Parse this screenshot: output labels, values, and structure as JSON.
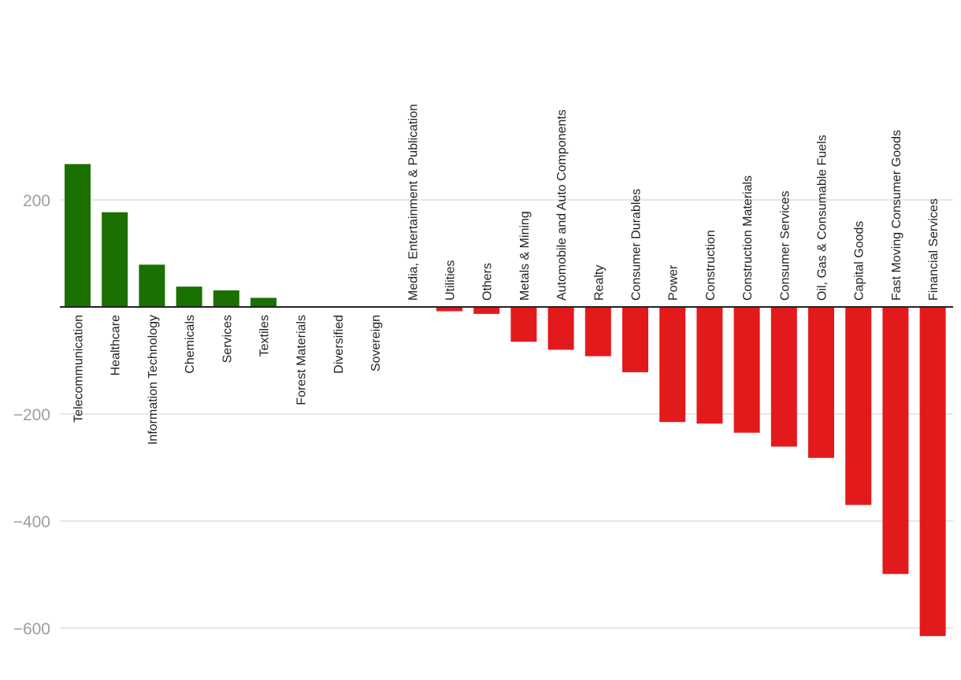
{
  "chart_data": {
    "type": "bar",
    "title": "",
    "xlabel": "",
    "ylabel": "",
    "ylim": [
      -620,
      300
    ],
    "yticks": [
      200,
      -200,
      -400,
      -600
    ],
    "ytick_labels": [
      "200",
      "−200",
      "−400",
      "−600"
    ],
    "grid": true,
    "legend": "none",
    "colors": {
      "positive": "#1a7000",
      "negative": "#e31a1c",
      "zero_line": "#222222",
      "grid": "#dedede"
    },
    "categories": [
      "Telecommunication",
      "Healthcare",
      "Information Technology",
      "Chemicals",
      "Services",
      "Textiles",
      "Forest Materials",
      "Diversified",
      "Sovereign",
      "Media, Entertainment & Publication",
      "Utilities",
      "Others",
      "Metals & Mining",
      "Automobile and Auto Components",
      "Realty",
      "Consumer Durables",
      "Power",
      "Construction",
      "Construction Materials",
      "Consumer Services",
      "Oil, Gas & Consumable Fuels",
      "Capital Goods",
      "Fast Moving Consumer Goods",
      "Financial Services"
    ],
    "values": [
      267,
      177,
      79,
      38,
      31,
      17,
      0,
      0,
      0,
      0,
      -8,
      -13,
      -65,
      -80,
      -92,
      -122,
      -215,
      -218,
      -235,
      -261,
      -282,
      -370,
      -499,
      -615
    ]
  }
}
